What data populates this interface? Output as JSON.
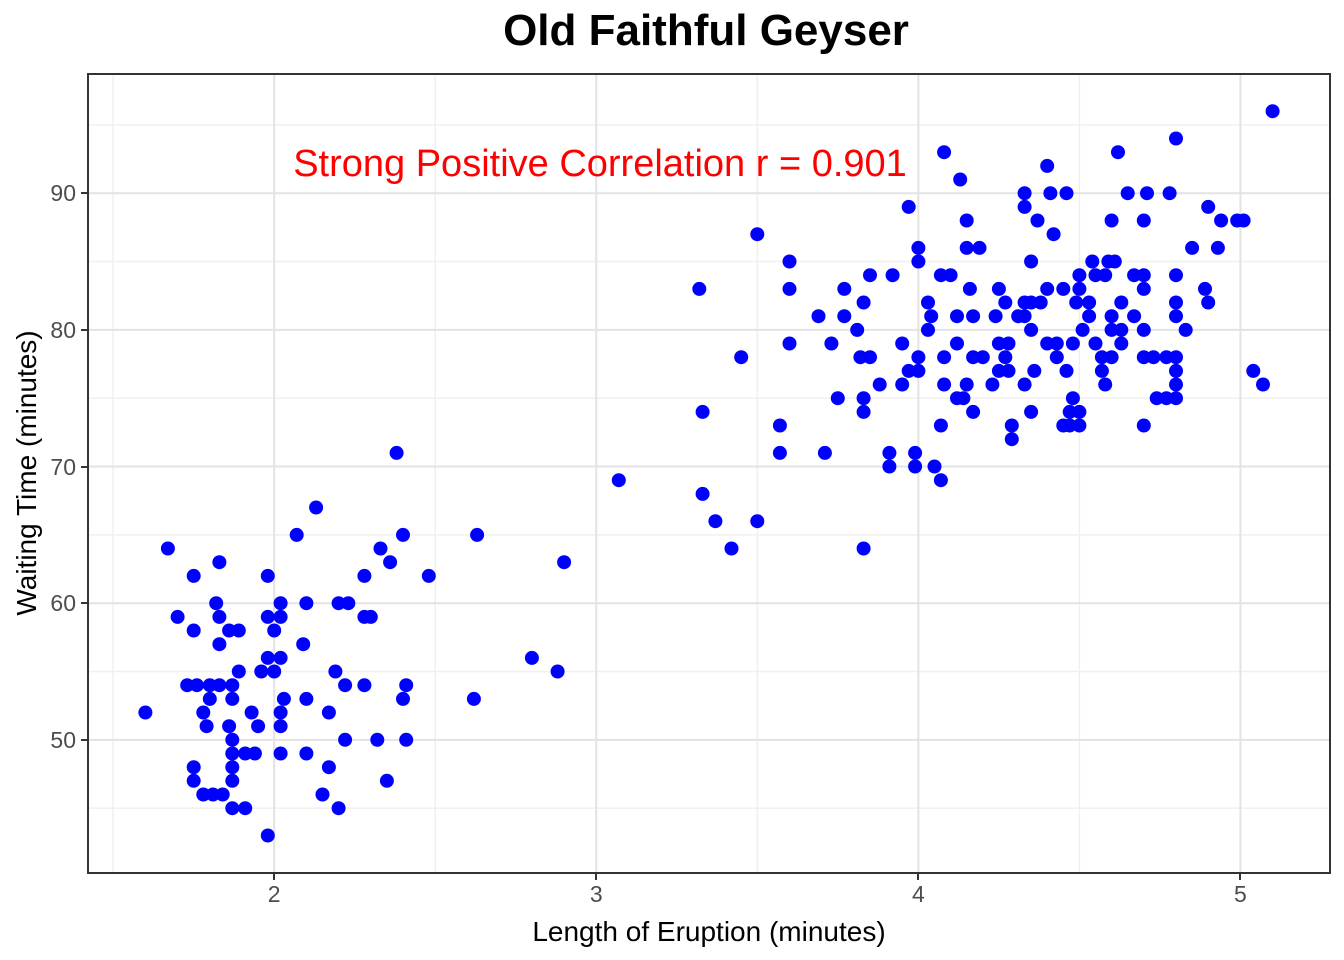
{
  "title": "Old Faithful Geyser",
  "annotation": {
    "text": "Strong Positive Correlation r = 0.901",
    "color": "#FF0000"
  },
  "chart_data": {
    "type": "scatter",
    "title": "Old Faithful Geyser",
    "xlabel": "Length of Eruption (minutes)",
    "ylabel": "Waiting Time (minutes)",
    "xlim": [
      1.425,
      5.275
    ],
    "ylim": [
      40.33,
      98.65
    ],
    "x_ticks": [
      2,
      3,
      4,
      5
    ],
    "y_ticks": [
      50,
      60,
      70,
      80,
      90
    ],
    "x_minor_ticks": [
      1.5,
      2.5,
      3.5,
      4.5
    ],
    "y_minor_ticks": [
      45,
      55,
      65,
      75,
      85,
      95
    ],
    "grid": true,
    "legend": false,
    "correlation_r": 0.901,
    "colors": {
      "point": "#0000FF",
      "annotation": "#FF0000",
      "panel_border": "#333333",
      "tick_label": "#4d4d4d",
      "grid_major": "#e3e3e3",
      "grid_minor": "#f0f0f0"
    },
    "points": [
      [
        1.6,
        52
      ],
      [
        1.67,
        64
      ],
      [
        1.7,
        59
      ],
      [
        1.73,
        54
      ],
      [
        1.75,
        47
      ],
      [
        1.75,
        48
      ],
      [
        1.75,
        58
      ],
      [
        1.75,
        62
      ],
      [
        1.76,
        54
      ],
      [
        1.78,
        46
      ],
      [
        1.78,
        52
      ],
      [
        1.79,
        51
      ],
      [
        1.8,
        53
      ],
      [
        1.8,
        54
      ],
      [
        1.81,
        46
      ],
      [
        1.82,
        60
      ],
      [
        1.83,
        54
      ],
      [
        1.83,
        57
      ],
      [
        1.83,
        59
      ],
      [
        1.83,
        63
      ],
      [
        1.84,
        46
      ],
      [
        1.86,
        51
      ],
      [
        1.86,
        58
      ],
      [
        1.87,
        45
      ],
      [
        1.87,
        47
      ],
      [
        1.87,
        48
      ],
      [
        1.87,
        49
      ],
      [
        1.87,
        50
      ],
      [
        1.87,
        53
      ],
      [
        1.87,
        54
      ],
      [
        1.89,
        55
      ],
      [
        1.89,
        58
      ],
      [
        1.91,
        45
      ],
      [
        1.91,
        49
      ],
      [
        1.93,
        52
      ],
      [
        1.94,
        49
      ],
      [
        1.95,
        51
      ],
      [
        1.96,
        55
      ],
      [
        1.98,
        43
      ],
      [
        1.98,
        56
      ],
      [
        1.98,
        59
      ],
      [
        1.98,
        62
      ],
      [
        2.0,
        55
      ],
      [
        2.0,
        58
      ],
      [
        2.02,
        49
      ],
      [
        2.02,
        51
      ],
      [
        2.02,
        52
      ],
      [
        2.02,
        56
      ],
      [
        2.02,
        59
      ],
      [
        2.02,
        60
      ],
      [
        2.03,
        53
      ],
      [
        2.07,
        65
      ],
      [
        2.09,
        57
      ],
      [
        2.1,
        49
      ],
      [
        2.1,
        53
      ],
      [
        2.1,
        60
      ],
      [
        2.13,
        67
      ],
      [
        2.15,
        46
      ],
      [
        2.17,
        48
      ],
      [
        2.17,
        52
      ],
      [
        2.19,
        55
      ],
      [
        2.2,
        45
      ],
      [
        2.2,
        60
      ],
      [
        2.22,
        50
      ],
      [
        2.22,
        54
      ],
      [
        2.23,
        60
      ],
      [
        2.28,
        54
      ],
      [
        2.28,
        59
      ],
      [
        2.28,
        62
      ],
      [
        2.3,
        59
      ],
      [
        2.32,
        50
      ],
      [
        2.33,
        64
      ],
      [
        2.35,
        47
      ],
      [
        2.36,
        63
      ],
      [
        2.38,
        71
      ],
      [
        2.4,
        53
      ],
      [
        2.4,
        65
      ],
      [
        2.41,
        50
      ],
      [
        2.41,
        54
      ],
      [
        2.48,
        62
      ],
      [
        2.62,
        53
      ],
      [
        2.63,
        65
      ],
      [
        2.8,
        56
      ],
      [
        2.88,
        55
      ],
      [
        2.9,
        63
      ],
      [
        3.07,
        69
      ],
      [
        3.33,
        68
      ],
      [
        3.37,
        66
      ],
      [
        3.42,
        64
      ],
      [
        3.5,
        66
      ],
      [
        3.83,
        64
      ],
      [
        3.32,
        83
      ],
      [
        3.33,
        74
      ],
      [
        3.45,
        78
      ],
      [
        3.5,
        87
      ],
      [
        3.57,
        71
      ],
      [
        3.57,
        73
      ],
      [
        3.6,
        79
      ],
      [
        3.6,
        83
      ],
      [
        3.6,
        85
      ],
      [
        3.69,
        81
      ],
      [
        3.71,
        71
      ],
      [
        3.73,
        79
      ],
      [
        3.75,
        75
      ],
      [
        3.77,
        81
      ],
      [
        3.77,
        83
      ],
      [
        3.81,
        80
      ],
      [
        3.82,
        78
      ],
      [
        3.83,
        74
      ],
      [
        3.83,
        75
      ],
      [
        3.83,
        82
      ],
      [
        3.85,
        78
      ],
      [
        3.85,
        84
      ],
      [
        3.88,
        76
      ],
      [
        3.91,
        70
      ],
      [
        3.91,
        71
      ],
      [
        3.92,
        84
      ],
      [
        3.95,
        76
      ],
      [
        3.95,
        79
      ],
      [
        3.97,
        77
      ],
      [
        3.97,
        89
      ],
      [
        3.99,
        70
      ],
      [
        3.99,
        71
      ],
      [
        4.0,
        77
      ],
      [
        4.0,
        78
      ],
      [
        4.0,
        85
      ],
      [
        4.0,
        86
      ],
      [
        5.1,
        96
      ],
      [
        4.8,
        94
      ],
      [
        4.08,
        93
      ],
      [
        4.62,
        93
      ],
      [
        4.4,
        92
      ],
      [
        4.13,
        91
      ],
      [
        4.33,
        90
      ],
      [
        4.41,
        90
      ],
      [
        4.46,
        90
      ],
      [
        4.65,
        90
      ],
      [
        4.71,
        90
      ],
      [
        4.78,
        90
      ],
      [
        4.33,
        89
      ],
      [
        4.9,
        89
      ],
      [
        4.15,
        88
      ],
      [
        4.37,
        88
      ],
      [
        4.6,
        88
      ],
      [
        4.7,
        88
      ],
      [
        4.94,
        88
      ],
      [
        4.99,
        88
      ],
      [
        5.01,
        88
      ],
      [
        4.42,
        87
      ],
      [
        4.15,
        86
      ],
      [
        4.19,
        86
      ],
      [
        4.85,
        86
      ],
      [
        4.93,
        86
      ],
      [
        4.35,
        85
      ],
      [
        4.54,
        85
      ],
      [
        4.59,
        85
      ],
      [
        4.61,
        85
      ],
      [
        4.07,
        84
      ],
      [
        4.1,
        84
      ],
      [
        4.5,
        84
      ],
      [
        4.55,
        84
      ],
      [
        4.58,
        84
      ],
      [
        4.67,
        84
      ],
      [
        4.7,
        84
      ],
      [
        4.8,
        84
      ],
      [
        4.16,
        83
      ],
      [
        4.25,
        83
      ],
      [
        4.4,
        83
      ],
      [
        4.45,
        83
      ],
      [
        4.5,
        83
      ],
      [
        4.7,
        83
      ],
      [
        4.89,
        83
      ],
      [
        4.03,
        82
      ],
      [
        4.27,
        82
      ],
      [
        4.33,
        82
      ],
      [
        4.35,
        82
      ],
      [
        4.38,
        82
      ],
      [
        4.49,
        82
      ],
      [
        4.53,
        82
      ],
      [
        4.63,
        82
      ],
      [
        4.8,
        82
      ],
      [
        4.9,
        82
      ],
      [
        4.04,
        81
      ],
      [
        4.12,
        81
      ],
      [
        4.17,
        81
      ],
      [
        4.24,
        81
      ],
      [
        4.31,
        81
      ],
      [
        4.33,
        81
      ],
      [
        4.53,
        81
      ],
      [
        4.6,
        81
      ],
      [
        4.67,
        81
      ],
      [
        4.8,
        81
      ],
      [
        4.03,
        80
      ],
      [
        4.35,
        80
      ],
      [
        4.51,
        80
      ],
      [
        4.6,
        80
      ],
      [
        4.63,
        80
      ],
      [
        4.7,
        80
      ],
      [
        4.83,
        80
      ],
      [
        4.12,
        79
      ],
      [
        4.25,
        79
      ],
      [
        4.28,
        79
      ],
      [
        4.4,
        79
      ],
      [
        4.43,
        79
      ],
      [
        4.48,
        79
      ],
      [
        4.55,
        79
      ],
      [
        4.63,
        79
      ],
      [
        4.08,
        78
      ],
      [
        4.17,
        78
      ],
      [
        4.2,
        78
      ],
      [
        4.27,
        78
      ],
      [
        4.43,
        78
      ],
      [
        4.57,
        78
      ],
      [
        4.6,
        78
      ],
      [
        4.7,
        78
      ],
      [
        4.73,
        78
      ],
      [
        4.77,
        78
      ],
      [
        4.8,
        78
      ],
      [
        4.25,
        77
      ],
      [
        4.28,
        77
      ],
      [
        4.36,
        77
      ],
      [
        4.46,
        77
      ],
      [
        4.57,
        77
      ],
      [
        4.8,
        77
      ],
      [
        5.04,
        77
      ],
      [
        4.08,
        76
      ],
      [
        4.15,
        76
      ],
      [
        4.23,
        76
      ],
      [
        4.33,
        76
      ],
      [
        4.58,
        76
      ],
      [
        4.8,
        76
      ],
      [
        5.07,
        76
      ],
      [
        4.12,
        75
      ],
      [
        4.14,
        75
      ],
      [
        4.48,
        75
      ],
      [
        4.74,
        75
      ],
      [
        4.77,
        75
      ],
      [
        4.8,
        75
      ],
      [
        4.17,
        74
      ],
      [
        4.35,
        74
      ],
      [
        4.47,
        74
      ],
      [
        4.5,
        74
      ],
      [
        4.07,
        73
      ],
      [
        4.29,
        73
      ],
      [
        4.45,
        73
      ],
      [
        4.47,
        73
      ],
      [
        4.5,
        73
      ],
      [
        4.7,
        73
      ],
      [
        4.29,
        72
      ],
      [
        4.05,
        70
      ],
      [
        4.07,
        69
      ]
    ]
  }
}
